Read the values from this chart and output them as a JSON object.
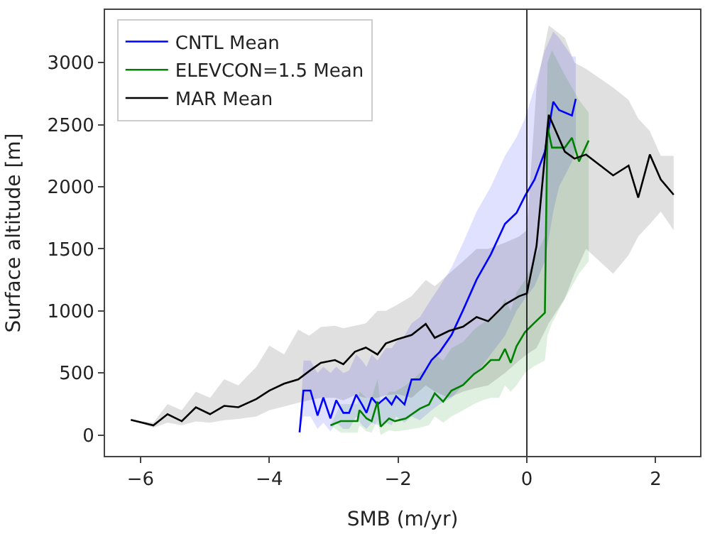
{
  "chart_data": {
    "type": "line",
    "xlabel": "SMB (m/yr)",
    "ylabel": "Surface altitude [m]",
    "xlim": [
      -6.55,
      2.69
    ],
    "xticks": [
      {
        "value": -6,
        "label": "−6"
      },
      {
        "value": -4,
        "label": "−4"
      },
      {
        "value": -2,
        "label": "−2"
      },
      0,
      2
    ],
    "ylim": [
      -168,
      3425
    ],
    "yticks": [
      0,
      500,
      1000,
      1500,
      2000,
      2500,
      3000
    ],
    "legend": "top left",
    "line_style": "solid",
    "marker": "none",
    "ref_lines": [
      {
        "axis": "x",
        "value": 0,
        "label": null,
        "color": "#000000"
      }
    ],
    "series": [
      {
        "name": "CNTL Mean",
        "color": "#0000ff",
        "x": [
          -3.53,
          -3.47,
          -3.36,
          -3.25,
          -3.16,
          -3.05,
          -2.96,
          -2.85,
          -2.76,
          -2.65,
          -2.56,
          -2.49,
          -2.41,
          -2.32,
          -2.19,
          -2.1,
          -2.03,
          -1.9,
          -1.79,
          -1.66,
          -1.48,
          -1.35,
          -1.17,
          -0.99,
          -0.78,
          -0.56,
          -0.34,
          -0.16,
          -0.03,
          0.12,
          0.28,
          0.41,
          0.5,
          0.7,
          0.76
        ],
        "values": [
          22,
          358,
          358,
          157,
          302,
          134,
          280,
          179,
          179,
          325,
          246,
          179,
          302,
          246,
          302,
          246,
          313,
          246,
          448,
          448,
          604,
          671,
          806,
          1007,
          1253,
          1455,
          1701,
          1790,
          1925,
          2059,
          2283,
          2686,
          2619,
          2574,
          2708
        ],
        "upper": [
          22,
          600,
          600,
          500,
          550,
          500,
          550,
          500,
          520,
          650,
          600,
          550,
          650,
          600,
          700,
          700,
          750,
          800,
          900,
          950,
          1100,
          1200,
          1350,
          1550,
          1800,
          2000,
          2250,
          2400,
          2550,
          2800,
          3100,
          3250,
          3200,
          3050,
          3050
        ],
        "lower": [
          22,
          150,
          150,
          50,
          100,
          30,
          100,
          50,
          50,
          150,
          80,
          50,
          100,
          80,
          100,
          80,
          150,
          100,
          150,
          120,
          200,
          250,
          300,
          400,
          500,
          650,
          800,
          1000,
          1100,
          1200,
          1400,
          1800,
          2000,
          2200,
          2300
        ]
      },
      {
        "name": "ELEVCON=1.5 Mean",
        "color": "#008000",
        "x": [
          -3.05,
          -2.89,
          -2.63,
          -2.6,
          -2.49,
          -2.41,
          -2.32,
          -2.27,
          -2.14,
          -2.05,
          -1.88,
          -1.66,
          -1.52,
          -1.43,
          -1.3,
          -1.17,
          -0.99,
          -0.82,
          -0.69,
          -0.56,
          -0.43,
          -0.34,
          -0.25,
          -0.16,
          -0.03,
          0.1,
          0.28,
          0.32,
          0.39,
          0.59,
          0.7,
          0.81,
          0.96
        ],
        "values": [
          78,
          112,
          112,
          201,
          134,
          112,
          269,
          67,
          134,
          112,
          134,
          213,
          246,
          336,
          269,
          358,
          403,
          492,
          537,
          604,
          604,
          694,
          582,
          716,
          828,
          895,
          985,
          2484,
          2316,
          2316,
          2395,
          2204,
          2373
        ],
        "upper": [
          78,
          250,
          250,
          350,
          300,
          300,
          450,
          250,
          350,
          350,
          400,
          500,
          550,
          650,
          600,
          700,
          750,
          850,
          900,
          950,
          1000,
          1100,
          1000,
          1150,
          1250,
          1400,
          1600,
          3000,
          3100,
          2900,
          2800,
          2700,
          2600
        ],
        "lower": [
          78,
          20,
          20,
          80,
          30,
          20,
          120,
          0,
          40,
          30,
          40,
          60,
          80,
          150,
          100,
          150,
          200,
          250,
          280,
          300,
          300,
          400,
          350,
          400,
          500,
          550,
          600,
          800,
          900,
          1100,
          1200,
          1300,
          1400
        ]
      },
      {
        "name": "MAR Mean",
        "color": "#000000",
        "x": [
          -6.15,
          -5.8,
          -5.58,
          -5.36,
          -5.14,
          -4.92,
          -4.7,
          -4.48,
          -4.2,
          -4.0,
          -3.77,
          -3.55,
          -3.38,
          -3.2,
          -2.98,
          -2.85,
          -2.67,
          -2.5,
          -2.32,
          -2.19,
          -2.01,
          -1.79,
          -1.57,
          -1.43,
          -1.21,
          -0.99,
          -0.78,
          -0.6,
          -0.34,
          -0.12,
          0,
          0.15,
          0.34,
          0.59,
          0.74,
          0.92,
          1.34,
          1.58,
          1.73,
          1.91,
          2.08,
          2.28
        ],
        "values": [
          123,
          78,
          168,
          112,
          224,
          168,
          235,
          224,
          290,
          358,
          414,
          448,
          515,
          582,
          604,
          570,
          671,
          705,
          649,
          738,
          772,
          806,
          895,
          783,
          839,
          873,
          951,
          917,
          1052,
          1119,
          1141,
          1522,
          2580,
          2283,
          2227,
          2260,
          2092,
          2171,
          1913,
          2260,
          2059,
          1936
        ],
        "upper": [
          123,
          100,
          250,
          200,
          350,
          300,
          450,
          400,
          550,
          720,
          650,
          850,
          800,
          870,
          880,
          860,
          880,
          900,
          1000,
          1000,
          1050,
          1120,
          1250,
          1200,
          1300,
          1400,
          1500,
          1500,
          1550,
          1600,
          1650,
          2800,
          3300,
          3200,
          3000,
          2950,
          2800,
          2700,
          2550,
          2450,
          2250,
          2250
        ],
        "lower": [
          123,
          60,
          100,
          80,
          110,
          100,
          120,
          130,
          150,
          200,
          230,
          260,
          280,
          300,
          300,
          280,
          320,
          300,
          300,
          320,
          330,
          300,
          400,
          350,
          300,
          350,
          380,
          400,
          500,
          600,
          650,
          700,
          900,
          1100,
          1300,
          1500,
          1300,
          1450,
          1600,
          1700,
          1800,
          1650
        ]
      }
    ]
  }
}
